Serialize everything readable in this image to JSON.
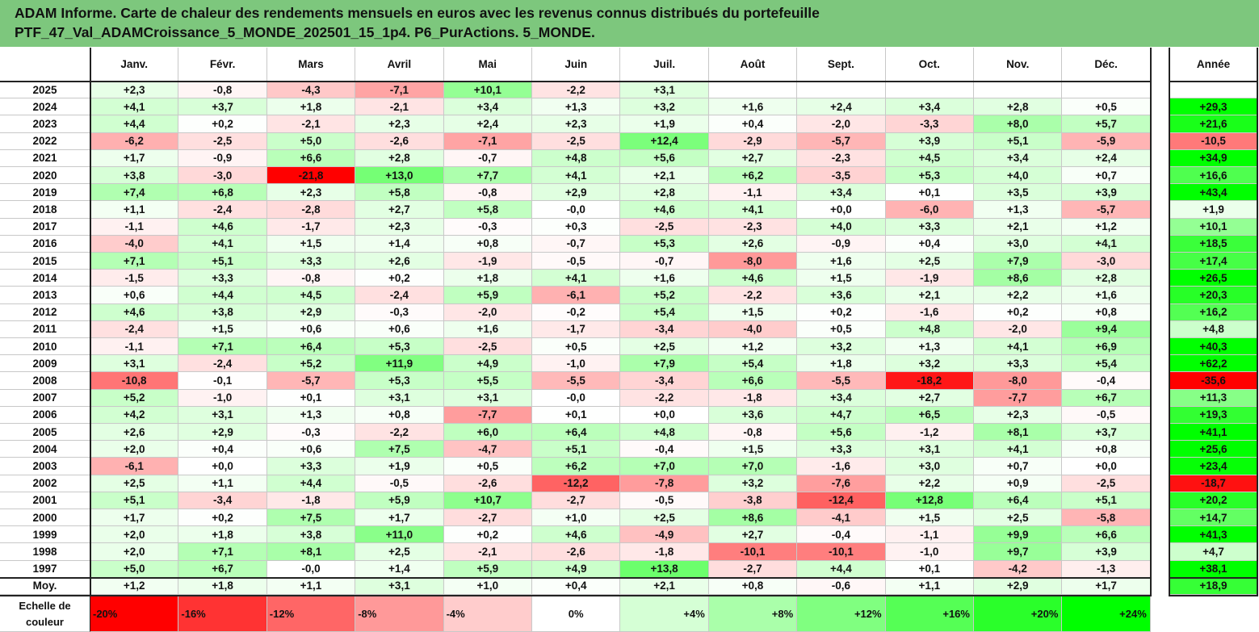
{
  "title": {
    "line1": "ADAM Informe. Carte de chaleur des rendements mensuels en euros avec les revenus connus distribués du portefeuille",
    "line2": "PTF_47_Val_ADAMCroissance_5_MONDE_202501_15_1p4. P6_PurActions. 5_MONDE."
  },
  "colors": {
    "negative_max": "#ff0000",
    "neutral": "#ffffff",
    "positive_max": "#00ff00",
    "title_bg": "#7dc77d"
  },
  "chart_data": {
    "type": "heatmap",
    "months": [
      "Janv.",
      "Févr.",
      "Mars",
      "Avril",
      "Mai",
      "Juin",
      "Juil.",
      "Août",
      "Sept.",
      "Oct.",
      "Nov.",
      "Déc."
    ],
    "year_header": "Année",
    "rows": [
      {
        "label": "2025",
        "values": [
          "+2,3",
          "-0,8",
          "-4,3",
          "-7,1",
          "+10,1",
          "-2,2",
          "+3,1",
          "",
          "",
          "",
          "",
          ""
        ],
        "year": ""
      },
      {
        "label": "2024",
        "values": [
          "+4,1",
          "+3,7",
          "+1,8",
          "-2,1",
          "+3,4",
          "+1,3",
          "+3,2",
          "+1,6",
          "+2,4",
          "+3,4",
          "+2,8",
          "+0,5"
        ],
        "year": "+29,3"
      },
      {
        "label": "2023",
        "values": [
          "+4,4",
          "+0,2",
          "-2,1",
          "+2,3",
          "+2,4",
          "+2,3",
          "+1,9",
          "+0,4",
          "-2,0",
          "-3,3",
          "+8,0",
          "+5,7"
        ],
        "year": "+21,6"
      },
      {
        "label": "2022",
        "values": [
          "-6,2",
          "-2,5",
          "+5,0",
          "-2,6",
          "-7,1",
          "-2,5",
          "+12,4",
          "-2,9",
          "-5,7",
          "+3,9",
          "+5,1",
          "-5,9"
        ],
        "year": "-10,5"
      },
      {
        "label": "2021",
        "values": [
          "+1,7",
          "-0,9",
          "+6,6",
          "+2,8",
          "-0,7",
          "+4,8",
          "+5,6",
          "+2,7",
          "-2,3",
          "+4,5",
          "+3,4",
          "+2,4"
        ],
        "year": "+34,9"
      },
      {
        "label": "2020",
        "values": [
          "+3,8",
          "-3,0",
          "-21,8",
          "+13,0",
          "+7,7",
          "+4,1",
          "+2,1",
          "+6,2",
          "-3,5",
          "+5,3",
          "+4,0",
          "+0,7"
        ],
        "year": "+16,6"
      },
      {
        "label": "2019",
        "values": [
          "+7,4",
          "+6,8",
          "+2,3",
          "+5,8",
          "-0,8",
          "+2,9",
          "+2,8",
          "-1,1",
          "+3,4",
          "+0,1",
          "+3,5",
          "+3,9"
        ],
        "year": "+43,4"
      },
      {
        "label": "2018",
        "values": [
          "+1,1",
          "-2,4",
          "-2,8",
          "+2,7",
          "+5,8",
          "-0,0",
          "+4,6",
          "+4,1",
          "+0,0",
          "-6,0",
          "+1,3",
          "-5,7"
        ],
        "year": "+1,9"
      },
      {
        "label": "2017",
        "values": [
          "-1,1",
          "+4,6",
          "-1,7",
          "+2,3",
          "-0,3",
          "+0,3",
          "-2,5",
          "-2,3",
          "+4,0",
          "+3,3",
          "+2,1",
          "+1,2"
        ],
        "year": "+10,1"
      },
      {
        "label": "2016",
        "values": [
          "-4,0",
          "+4,1",
          "+1,5",
          "+1,4",
          "+0,8",
          "-0,7",
          "+5,3",
          "+2,6",
          "-0,9",
          "+0,4",
          "+3,0",
          "+4,1"
        ],
        "year": "+18,5"
      },
      {
        "label": "2015",
        "values": [
          "+7,1",
          "+5,1",
          "+3,3",
          "+2,6",
          "-1,9",
          "-0,5",
          "-0,7",
          "-8,0",
          "+1,6",
          "+2,5",
          "+7,9",
          "-3,0"
        ],
        "year": "+17,4"
      },
      {
        "label": "2014",
        "values": [
          "-1,5",
          "+3,3",
          "-0,8",
          "+0,2",
          "+1,8",
          "+4,1",
          "+1,6",
          "+4,6",
          "+1,5",
          "-1,9",
          "+8,6",
          "+2,8"
        ],
        "year": "+26,5"
      },
      {
        "label": "2013",
        "values": [
          "+0,6",
          "+4,4",
          "+4,5",
          "-2,4",
          "+5,9",
          "-6,1",
          "+5,2",
          "-2,2",
          "+3,6",
          "+2,1",
          "+2,2",
          "+1,6"
        ],
        "year": "+20,3"
      },
      {
        "label": "2012",
        "values": [
          "+4,6",
          "+3,8",
          "+2,9",
          "-0,3",
          "-2,0",
          "-0,2",
          "+5,4",
          "+1,5",
          "+0,2",
          "-1,6",
          "+0,2",
          "+0,8"
        ],
        "year": "+16,2"
      },
      {
        "label": "2011",
        "values": [
          "-2,4",
          "+1,5",
          "+0,6",
          "+0,6",
          "+1,6",
          "-1,7",
          "-3,4",
          "-4,0",
          "+0,5",
          "+4,8",
          "-2,0",
          "+9,4"
        ],
        "year": "+4,8"
      },
      {
        "label": "2010",
        "values": [
          "-1,1",
          "+7,1",
          "+6,4",
          "+5,3",
          "-2,5",
          "+0,5",
          "+2,5",
          "+1,2",
          "+3,2",
          "+1,3",
          "+4,1",
          "+6,9"
        ],
        "year": "+40,3"
      },
      {
        "label": "2009",
        "values": [
          "+3,1",
          "-2,4",
          "+5,2",
          "+11,9",
          "+4,9",
          "-1,0",
          "+7,9",
          "+5,4",
          "+1,8",
          "+3,2",
          "+3,3",
          "+5,4"
        ],
        "year": "+62,2"
      },
      {
        "label": "2008",
        "values": [
          "-10,8",
          "-0,1",
          "-5,7",
          "+5,3",
          "+5,5",
          "-5,5",
          "-3,4",
          "+6,6",
          "-5,5",
          "-18,2",
          "-8,0",
          "-0,4"
        ],
        "year": "-35,6"
      },
      {
        "label": "2007",
        "values": [
          "+5,2",
          "-1,0",
          "+0,1",
          "+3,1",
          "+3,1",
          "-0,0",
          "-2,2",
          "-1,8",
          "+3,4",
          "+2,7",
          "-7,7",
          "+6,7"
        ],
        "year": "+11,3"
      },
      {
        "label": "2006",
        "values": [
          "+4,2",
          "+3,1",
          "+1,3",
          "+0,8",
          "-7,7",
          "+0,1",
          "+0,0",
          "+3,6",
          "+4,7",
          "+6,5",
          "+2,3",
          "-0,5"
        ],
        "year": "+19,3"
      },
      {
        "label": "2005",
        "values": [
          "+2,6",
          "+2,9",
          "-0,3",
          "-2,2",
          "+6,0",
          "+6,4",
          "+4,8",
          "-0,8",
          "+5,6",
          "-1,2",
          "+8,1",
          "+3,7"
        ],
        "year": "+41,1"
      },
      {
        "label": "2004",
        "values": [
          "+2,0",
          "+0,4",
          "+0,6",
          "+7,5",
          "-4,7",
          "+5,1",
          "-0,4",
          "+1,5",
          "+3,3",
          "+3,1",
          "+4,1",
          "+0,8"
        ],
        "year": "+25,6"
      },
      {
        "label": "2003",
        "values": [
          "-6,1",
          "+0,0",
          "+3,3",
          "+1,9",
          "+0,5",
          "+6,2",
          "+7,0",
          "+7,0",
          "-1,6",
          "+3,0",
          "+0,7",
          "+0,0"
        ],
        "year": "+23,4"
      },
      {
        "label": "2002",
        "values": [
          "+2,5",
          "+1,1",
          "+4,4",
          "-0,5",
          "-2,6",
          "-12,2",
          "-7,8",
          "+3,2",
          "-7,6",
          "+2,2",
          "+0,9",
          "-2,5"
        ],
        "year": "-18,7"
      },
      {
        "label": "2001",
        "values": [
          "+5,1",
          "-3,4",
          "-1,8",
          "+5,9",
          "+10,7",
          "-2,7",
          "-0,5",
          "-3,8",
          "-12,4",
          "+12,8",
          "+6,4",
          "+5,1"
        ],
        "year": "+20,2"
      },
      {
        "label": "2000",
        "values": [
          "+1,7",
          "+0,2",
          "+7,5",
          "+1,7",
          "-2,7",
          "+1,0",
          "+2,5",
          "+8,6",
          "-4,1",
          "+1,5",
          "+2,5",
          "-5,8"
        ],
        "year": "+14,7"
      },
      {
        "label": "1999",
        "values": [
          "+2,0",
          "+1,8",
          "+3,8",
          "+11,0",
          "+0,2",
          "+4,6",
          "-4,9",
          "+2,7",
          "-0,4",
          "-1,1",
          "+9,9",
          "+6,6"
        ],
        "year": "+41,3"
      },
      {
        "label": "1998",
        "values": [
          "+2,0",
          "+7,1",
          "+8,1",
          "+2,5",
          "-2,1",
          "-2,6",
          "-1,8",
          "-10,1",
          "-10,1",
          "-1,0",
          "+9,7",
          "+3,9"
        ],
        "year": "+4,7"
      },
      {
        "label": "1997",
        "values": [
          "+5,0",
          "+6,7",
          "-0,0",
          "+1,4",
          "+5,9",
          "+4,9",
          "+13,8",
          "-2,7",
          "+4,4",
          "+0,1",
          "-4,2",
          "-1,3"
        ],
        "year": "+38,1"
      },
      {
        "label": "Moy.",
        "values": [
          "+1,2",
          "+1,8",
          "+1,1",
          "+3,1",
          "+1,0",
          "+0,4",
          "+2,1",
          "+0,8",
          "-0,6",
          "+1,1",
          "+2,9",
          "+1,7"
        ],
        "year": "+18,9"
      }
    ],
    "scale": {
      "label_line1": "Echelle de",
      "label_line2": "couleur",
      "labels": [
        "-20%",
        "-16%",
        "-12%",
        "-8%",
        "-4%",
        "0%",
        "+4%",
        "+8%",
        "+12%",
        "+16%",
        "+20%",
        "+24%"
      ],
      "values": [
        -20,
        -16,
        -12,
        -8,
        -4,
        0,
        4,
        8,
        12,
        16,
        20,
        24
      ]
    }
  }
}
